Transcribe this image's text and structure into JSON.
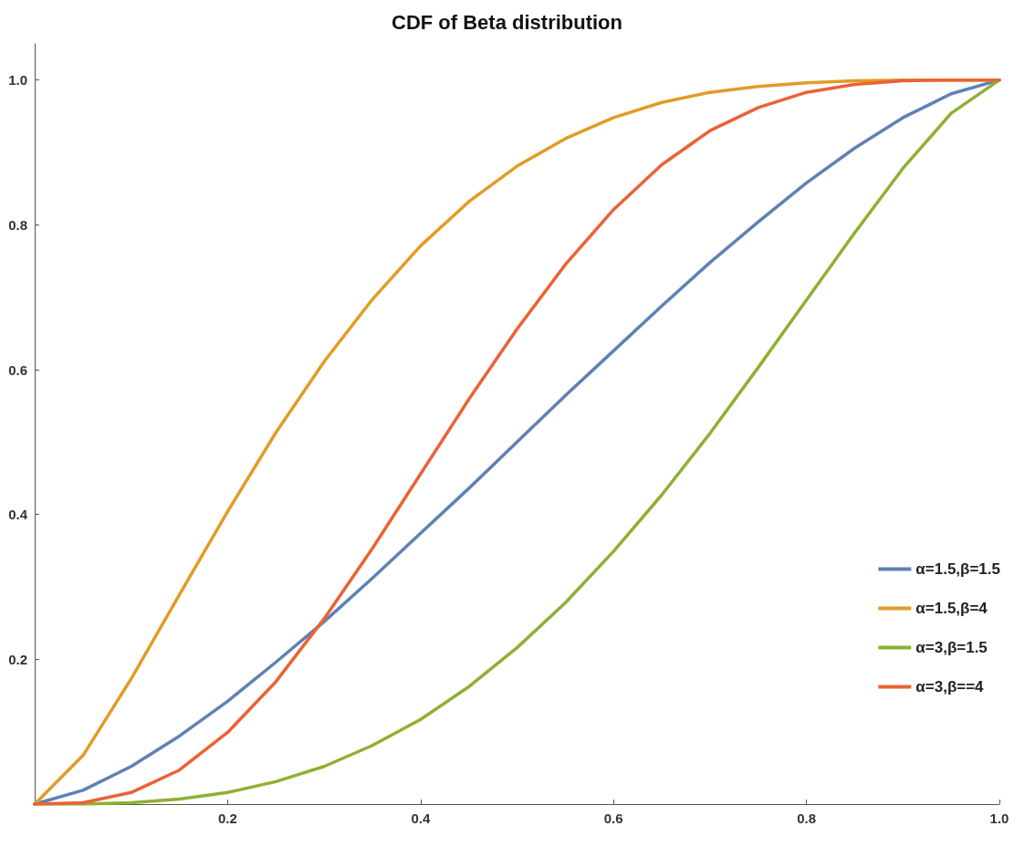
{
  "chart_data": {
    "type": "line",
    "title": "CDF of Beta distribution",
    "x": [
      0,
      0.05,
      0.1,
      0.15,
      0.2,
      0.25,
      0.3,
      0.35,
      0.4,
      0.45,
      0.5,
      0.55,
      0.6,
      0.65,
      0.7,
      0.75,
      0.8,
      0.85,
      0.9,
      0.95,
      1
    ],
    "series": [
      {
        "name": "α=1.5,β=1.5",
        "color": "#5e81b5",
        "values": [
          0,
          0.019,
          0.052,
          0.094,
          0.142,
          0.196,
          0.252,
          0.312,
          0.374,
          0.436,
          0.5,
          0.564,
          0.626,
          0.688,
          0.748,
          0.804,
          0.858,
          0.906,
          0.948,
          0.981,
          1
        ]
      },
      {
        "name": "α=1.5,β=4",
        "color": "#e19c24",
        "values": [
          0,
          0.067,
          0.173,
          0.289,
          0.404,
          0.513,
          0.611,
          0.697,
          0.771,
          0.832,
          0.881,
          0.919,
          0.948,
          0.969,
          0.983,
          0.991,
          0.996,
          0.999,
          1,
          1,
          1
        ]
      },
      {
        "name": "α=3,β=1.5",
        "color": "#8fb032",
        "values": [
          0,
          0,
          0.002,
          0.007,
          0.016,
          0.031,
          0.052,
          0.081,
          0.117,
          0.162,
          0.216,
          0.278,
          0.349,
          0.427,
          0.512,
          0.603,
          0.696,
          0.789,
          0.878,
          0.954,
          1
        ]
      },
      {
        "name": "α=3,β==4",
        "color": "#eb6235",
        "values": [
          0,
          0.002,
          0.016,
          0.047,
          0.099,
          0.169,
          0.256,
          0.353,
          0.456,
          0.559,
          0.656,
          0.745,
          0.821,
          0.883,
          0.93,
          0.962,
          0.983,
          0.994,
          0.999,
          1,
          1
        ]
      }
    ],
    "xlim": [
      0,
      1
    ],
    "ylim": [
      0,
      1.05
    ],
    "xticks": [
      {
        "value": 0.2,
        "label": "0.2"
      },
      {
        "value": 0.4,
        "label": "0.4"
      },
      {
        "value": 0.6,
        "label": "0.6"
      },
      {
        "value": 0.8,
        "label": "0.8"
      },
      {
        "value": 1,
        "label": "1.0"
      }
    ],
    "yticks": [
      {
        "value": 0.2,
        "label": "0.2"
      },
      {
        "value": 0.4,
        "label": "0.4"
      },
      {
        "value": 0.6,
        "label": "0.6"
      },
      {
        "value": 0.8,
        "label": "0.8"
      },
      {
        "value": 1,
        "label": "1.0"
      }
    ],
    "grid": false,
    "legend": "right",
    "marker": "none",
    "line_style": "solid"
  }
}
